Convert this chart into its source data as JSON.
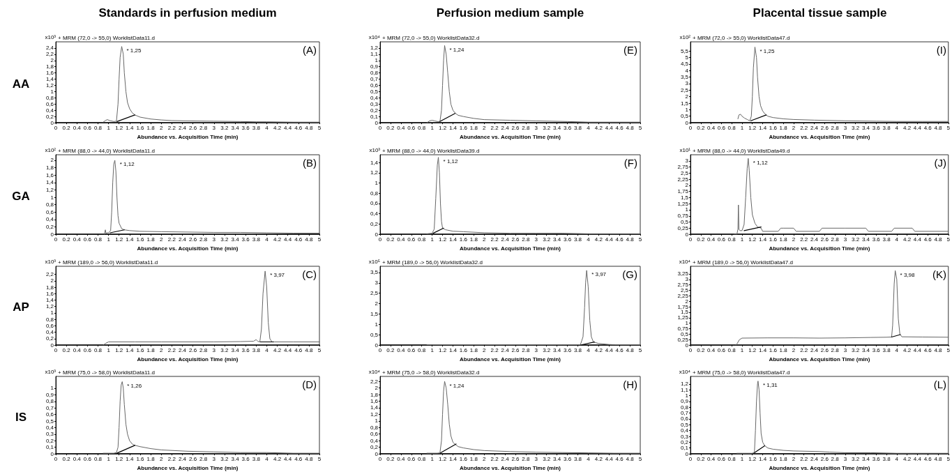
{
  "chart_data": [
    {
      "type": "line",
      "title": "+ MRM (72,0 -> 55,0) WorklistData11.d",
      "xlabel": "Abundance vs. Acquisition Time (min)",
      "ylabel": "x10³",
      "marker": "none",
      "xlim": [
        0,
        5
      ],
      "xticks": [
        0,
        0.2,
        0.4,
        0.6,
        0.8,
        1,
        1.2,
        1.4,
        1.6,
        1.8,
        2,
        2.2,
        2.4,
        2.6,
        2.8,
        3,
        3.2,
        3.4,
        3.6,
        3.8,
        4,
        4.2,
        4.4,
        4.6,
        4.8,
        5
      ],
      "ylim": [
        0,
        2.6
      ],
      "yticks": [
        0,
        {
          "value": 0.2,
          "label": "0,2"
        },
        {
          "value": 0.4,
          "label": "0,4"
        },
        {
          "value": 0.6,
          "label": "0,6"
        },
        {
          "value": 0.8,
          "label": "0,8"
        },
        1,
        {
          "value": 1.2,
          "label": "1,2"
        },
        {
          "value": 1.4,
          "label": "1,4"
        },
        {
          "value": 1.6,
          "label": "1,6"
        },
        {
          "value": 1.8,
          "label": "1,8"
        },
        2,
        {
          "value": 2.2,
          "label": "2,2"
        },
        {
          "value": 2.4,
          "label": "2,4"
        }
      ],
      "series": [
        {
          "color": "#666666",
          "x": [
            0.9,
            0.95,
            0.98,
            1.02,
            1.1,
            1.15,
            1.18,
            1.2,
            1.22,
            1.25,
            1.28,
            1.3,
            1.33,
            1.36,
            1.4,
            1.45,
            1.5,
            1.6,
            1.8,
            2,
            2.2,
            2.5,
            3,
            3.5,
            3.8,
            4,
            4.5,
            5
          ],
          "values": [
            0.02,
            0.08,
            0.1,
            0.07,
            0.04,
            0.05,
            0.6,
            1.4,
            2.1,
            2.45,
            2.2,
            1.6,
            1.0,
            0.65,
            0.45,
            0.32,
            0.25,
            0.18,
            0.12,
            0.09,
            0.07,
            0.06,
            0.05,
            0.04,
            0.03,
            0.03,
            0.02,
            0.02
          ]
        },
        {
          "color": "#000000",
          "x": [
            1.16,
            1.5
          ],
          "values": [
            0.04,
            0.25
          ]
        }
      ],
      "annotations": [
        "(A)",
        "Standards in perfusion medium",
        "AA",
        {
          "text": "* 1,25",
          "x": 1.25,
          "y": 2.45
        }
      ]
    },
    {
      "type": "line",
      "title": "+ MRM (72,0 -> 55,0) WorklistData32.d",
      "xlabel": "Abundance vs. Acquisition Time (min)",
      "ylabel": "x10⁴",
      "marker": "none",
      "xlim": [
        0,
        5
      ],
      "xticks": [
        0,
        0.2,
        0.4,
        0.6,
        0.8,
        1,
        1.2,
        1.4,
        1.6,
        1.8,
        2,
        2.2,
        2.4,
        2.6,
        2.8,
        3,
        3.2,
        3.4,
        3.6,
        3.8,
        4,
        4.2,
        4.4,
        4.6,
        4.8,
        5
      ],
      "ylim": [
        0,
        1.3
      ],
      "yticks": [
        0,
        {
          "value": 0.1,
          "label": "0,1"
        },
        {
          "value": 0.2,
          "label": "0,2"
        },
        {
          "value": 0.3,
          "label": "0,3"
        },
        {
          "value": 0.4,
          "label": "0,4"
        },
        {
          "value": 0.5,
          "label": "0,5"
        },
        {
          "value": 0.6,
          "label": "0,6"
        },
        {
          "value": 0.7,
          "label": "0,7"
        },
        {
          "value": 0.8,
          "label": "0,8"
        },
        {
          "value": 0.9,
          "label": "0,9"
        },
        1,
        {
          "value": 1.1,
          "label": "1,1"
        },
        {
          "value": 1.2,
          "label": "1,2"
        }
      ],
      "series": [
        {
          "color": "#666666",
          "x": [
            0.9,
            0.95,
            1,
            1.05,
            1.1,
            1.15,
            1.18,
            1.2,
            1.22,
            1.24,
            1.27,
            1.3,
            1.33,
            1.36,
            1.4,
            1.45,
            1.5,
            1.6,
            1.8,
            2,
            2.5,
            3,
            3.6,
            4,
            4.5,
            5
          ],
          "values": [
            0.0,
            0.03,
            0.04,
            0.03,
            0.02,
            0.02,
            0.2,
            0.6,
            1.0,
            1.24,
            1.1,
            0.8,
            0.5,
            0.3,
            0.2,
            0.15,
            0.12,
            0.1,
            0.07,
            0.05,
            0.04,
            0.03,
            0.02,
            0.01,
            0.01,
            0.01
          ]
        },
        {
          "color": "#000000",
          "x": [
            1.15,
            1.44
          ],
          "values": [
            0.02,
            0.15
          ]
        }
      ],
      "annotations": [
        "(E)",
        "Perfusion medium sample",
        {
          "text": "* 1,24",
          "x": 1.24,
          "y": 1.24
        }
      ]
    },
    {
      "type": "line",
      "title": "+ MRM (72,0 -> 55,0) WorklistData47.d",
      "xlabel": "Abundance vs. Acquisition Time (min)",
      "ylabel": "x10²",
      "marker": "none",
      "xlim": [
        0,
        5
      ],
      "xticks": [
        0,
        0.2,
        0.4,
        0.6,
        0.8,
        1,
        1.2,
        1.4,
        1.6,
        1.8,
        2,
        2.2,
        2.4,
        2.6,
        2.8,
        3,
        3.2,
        3.4,
        3.6,
        3.8,
        4,
        4.2,
        4.4,
        4.6,
        4.8,
        5
      ],
      "ylim": [
        0,
        6.2
      ],
      "yticks": [
        0,
        {
          "value": 0.5,
          "label": "0,5"
        },
        1,
        {
          "value": 1.5,
          "label": "1,5"
        },
        2,
        {
          "value": 2.5,
          "label": "2,5"
        },
        3,
        {
          "value": 3.5,
          "label": "3,5"
        },
        4,
        {
          "value": 4.5,
          "label": "4,5"
        },
        5,
        {
          "value": 5.5,
          "label": "5,5"
        }
      ],
      "series": [
        {
          "color": "#666666",
          "x": [
            0.92,
            0.94,
            0.97,
            1.0,
            1.05,
            1.1,
            1.15,
            1.18,
            1.2,
            1.22,
            1.25,
            1.28,
            1.3,
            1.33,
            1.36,
            1.4,
            1.45,
            1.5,
            1.6,
            1.8,
            2,
            2.4,
            3,
            3.6,
            4,
            4.5,
            5
          ],
          "values": [
            0.3,
            0.6,
            0.65,
            0.5,
            0.35,
            0.25,
            0.15,
            0.5,
            2.0,
            4.2,
            5.8,
            5.0,
            3.5,
            2.0,
            1.3,
            0.9,
            0.65,
            0.5,
            0.4,
            0.3,
            0.25,
            0.2,
            0.15,
            0.12,
            0.1,
            0.1,
            0.1
          ]
        },
        {
          "color": "#000000",
          "x": [
            1.17,
            1.47
          ],
          "values": [
            0.15,
            0.6
          ]
        }
      ],
      "annotations": [
        "(I)",
        "Placental tissue sample",
        {
          "text": "* 1,25",
          "x": 1.25,
          "y": 5.8
        }
      ]
    },
    {
      "type": "line",
      "title": "+ MRM (88,0 -> 44,0) WorklistData11.d",
      "xlabel": "Abundance vs. Acquisition Time (min)",
      "ylabel": "x10²",
      "marker": "none",
      "xlim": [
        0,
        5
      ],
      "xticks": [
        0,
        0.2,
        0.4,
        0.6,
        0.8,
        1,
        1.2,
        1.4,
        1.6,
        1.8,
        2,
        2.2,
        2.4,
        2.6,
        2.8,
        3,
        3.2,
        3.4,
        3.6,
        3.8,
        4,
        4.2,
        4.4,
        4.6,
        4.8,
        5
      ],
      "ylim": [
        0,
        2.15
      ],
      "yticks": [
        0,
        {
          "value": 0.2,
          "label": "0,2"
        },
        {
          "value": 0.4,
          "label": "0,4"
        },
        {
          "value": 0.6,
          "label": "0,6"
        },
        {
          "value": 0.8,
          "label": "0,8"
        },
        1,
        {
          "value": 1.2,
          "label": "1,2"
        },
        {
          "value": 1.4,
          "label": "1,4"
        },
        {
          "value": 1.6,
          "label": "1,6"
        },
        {
          "value": 1.8,
          "label": "1,8"
        },
        2
      ],
      "series": [
        {
          "color": "#666666",
          "x": [
            0.92,
            0.94,
            0.95,
            0.97,
            1.0,
            1.04,
            1.06,
            1.08,
            1.1,
            1.12,
            1.14,
            1.16,
            1.18,
            1.2,
            1.25,
            1.3,
            1.4,
            1.6,
            2,
            2.5,
            3,
            3.5,
            4,
            4.5,
            5
          ],
          "values": [
            0.0,
            0.12,
            0.03,
            0.04,
            0.04,
            0.1,
            0.6,
            1.4,
            1.9,
            2.0,
            1.7,
            1.0,
            0.5,
            0.3,
            0.15,
            0.12,
            0.1,
            0.08,
            0.07,
            0.06,
            0.05,
            0.05,
            0.04,
            0.03,
            0.03
          ]
        },
        {
          "color": "#000000",
          "x": [
            1.03,
            1.3
          ],
          "values": [
            0.04,
            0.12
          ]
        }
      ],
      "annotations": [
        "(B)",
        "GA",
        {
          "text": "* 1,12",
          "x": 1.12,
          "y": 2.0
        }
      ]
    },
    {
      "type": "line",
      "title": "+ MRM (88,0 -> 44,0) WorklistData39.d",
      "xlabel": "Abundance vs. Acquisition Time (min)",
      "ylabel": "x10³",
      "marker": "none",
      "xlim": [
        0,
        5
      ],
      "xticks": [
        0,
        0.2,
        0.4,
        0.6,
        0.8,
        1,
        1.2,
        1.4,
        1.6,
        1.8,
        2,
        2.2,
        2.4,
        2.6,
        2.8,
        3,
        3.2,
        3.4,
        3.6,
        3.8,
        4,
        4.2,
        4.4,
        4.6,
        4.8,
        5
      ],
      "ylim": [
        0,
        1.55
      ],
      "yticks": [
        0,
        {
          "value": 0.2,
          "label": "0,2"
        },
        {
          "value": 0.4,
          "label": "0,4"
        },
        {
          "value": 0.6,
          "label": "0,6"
        },
        {
          "value": 0.8,
          "label": "0,8"
        },
        1,
        {
          "value": 1.2,
          "label": "1,2"
        },
        {
          "value": 1.4,
          "label": "1,4"
        }
      ],
      "series": [
        {
          "color": "#666666",
          "x": [
            0.9,
            1,
            1.04,
            1.07,
            1.1,
            1.12,
            1.14,
            1.16,
            1.18,
            1.2,
            1.25,
            1.3,
            1.4,
            1.6,
            2,
            2.5,
            3,
            3.5,
            4,
            5
          ],
          "values": [
            0.01,
            0.02,
            0.1,
            0.7,
            1.35,
            1.5,
            1.2,
            0.6,
            0.25,
            0.12,
            0.09,
            0.08,
            0.06,
            0.05,
            0.03,
            0.02,
            0.02,
            0.02,
            0.01,
            0.01
          ]
        },
        {
          "color": "#000000",
          "x": [
            1.02,
            1.22
          ],
          "values": [
            0.02,
            0.12
          ]
        }
      ],
      "annotations": [
        "(F)",
        {
          "text": "* 1,12",
          "x": 1.12,
          "y": 1.5
        }
      ]
    },
    {
      "type": "line",
      "title": "+ MRM (88,0 -> 44,0) WorklistData49.d",
      "xlabel": "Abundance vs. Acquisition Time (min)",
      "ylabel": "x10¹",
      "marker": "none",
      "xlim": [
        0,
        5
      ],
      "xticks": [
        0,
        0.2,
        0.4,
        0.6,
        0.8,
        1,
        1.2,
        1.4,
        1.6,
        1.8,
        2,
        2.2,
        2.4,
        2.6,
        2.8,
        3,
        3.2,
        3.4,
        3.6,
        3.8,
        4,
        4.2,
        4.4,
        4.6,
        4.8,
        5
      ],
      "ylim": [
        0,
        3.25
      ],
      "yticks": [
        0,
        {
          "value": 0.25,
          "label": "0,25"
        },
        {
          "value": 0.5,
          "label": "0,5"
        },
        {
          "value": 0.75,
          "label": "0,75"
        },
        1,
        {
          "value": 1.25,
          "label": "1,25"
        },
        {
          "value": 1.5,
          "label": "1,5"
        },
        {
          "value": 1.75,
          "label": "1,75"
        },
        2,
        {
          "value": 2.25,
          "label": "2,25"
        },
        {
          "value": 2.5,
          "label": "2,5"
        },
        {
          "value": 2.75,
          "label": "2,75"
        },
        3
      ],
      "series": [
        {
          "color": "#666666",
          "x": [
            0.85,
            0.9,
            0.92,
            0.93,
            0.94,
            0.96,
            1.0,
            1.04,
            1.07,
            1.1,
            1.12,
            1.14,
            1.17,
            1.2,
            1.25,
            1.3,
            1.37,
            1.4,
            1.7,
            1.75,
            1.8,
            2.0,
            2.05,
            2.5,
            2.55,
            3.0,
            3.4,
            3.45,
            3.9,
            3.95,
            4.3,
            4.35,
            5
          ],
          "values": [
            0,
            0,
            0.2,
            1.2,
            0.2,
            0.15,
            0.15,
            0.4,
            1.5,
            2.7,
            3.1,
            2.6,
            1.5,
            0.8,
            0.45,
            0.3,
            0.25,
            0.12,
            0.12,
            0.25,
            0.25,
            0.25,
            0.12,
            0.12,
            0.25,
            0.25,
            0.25,
            0.12,
            0.12,
            0.25,
            0.25,
            0.12,
            0.12
          ]
        },
        {
          "color": "#000000",
          "x": [
            1.04,
            1.37
          ],
          "values": [
            0.15,
            0.3
          ]
        }
      ],
      "annotations": [
        "(J)",
        {
          "text": "* 1,12",
          "x": 1.12,
          "y": 3.1
        }
      ]
    },
    {
      "type": "line",
      "title": "+ MRM (189,0 -> 56,0) WorklistData11.d",
      "xlabel": "Abundance vs. Acquisition Time (min)",
      "ylabel": "x10³",
      "marker": "none",
      "xlim": [
        0,
        5
      ],
      "xticks": [
        0,
        0.2,
        0.4,
        0.6,
        0.8,
        1,
        1.2,
        1.4,
        1.6,
        1.8,
        2,
        2.2,
        2.4,
        2.6,
        2.8,
        3,
        3.2,
        3.4,
        3.6,
        3.8,
        4,
        4.2,
        4.4,
        4.6,
        4.8,
        5
      ],
      "ylim": [
        0,
        2.45
      ],
      "yticks": [
        0,
        {
          "value": 0.2,
          "label": "0,2"
        },
        {
          "value": 0.4,
          "label": "0,4"
        },
        {
          "value": 0.6,
          "label": "0,6"
        },
        {
          "value": 0.8,
          "label": "0,8"
        },
        1,
        {
          "value": 1.2,
          "label": "1,2"
        },
        {
          "value": 1.4,
          "label": "1,4"
        },
        {
          "value": 1.6,
          "label": "1,6"
        },
        {
          "value": 1.8,
          "label": "1,8"
        },
        2,
        {
          "value": 2.2,
          "label": "2,2"
        }
      ],
      "series": [
        {
          "color": "#666666",
          "x": [
            0.9,
            0.95,
            1,
            1.5,
            2,
            2.5,
            3,
            3.5,
            3.75,
            3.8,
            3.83,
            3.87,
            3.9,
            3.93,
            3.97,
            4.0,
            4.03,
            4.06,
            4.1,
            4.15,
            4.5,
            5
          ],
          "values": [
            0.0,
            0.06,
            0.1,
            0.1,
            0.1,
            0.1,
            0.1,
            0.11,
            0.12,
            0.17,
            0.12,
            0.1,
            0.5,
            1.6,
            2.3,
            1.8,
            0.7,
            0.2,
            0.1,
            0.1,
            0.1,
            0.1
          ]
        },
        {
          "color": "#000000",
          "x": [
            3.88,
            4.13
          ],
          "values": [
            0.1,
            0.1
          ]
        }
      ],
      "annotations": [
        "(C)",
        "AP",
        {
          "text": "* 3,97",
          "x": 3.97,
          "y": 2.3
        }
      ]
    },
    {
      "type": "line",
      "title": "+ MRM (189,0 -> 56,0) WorklistData32.d",
      "xlabel": "Abundance vs. Acquisition Time (min)",
      "ylabel": "x10⁵",
      "marker": "none",
      "xlim": [
        0,
        5
      ],
      "xticks": [
        0,
        0.2,
        0.4,
        0.6,
        0.8,
        1,
        1.2,
        1.4,
        1.6,
        1.8,
        2,
        2.2,
        2.4,
        2.6,
        2.8,
        3,
        3.2,
        3.4,
        3.6,
        3.8,
        4,
        4.2,
        4.4,
        4.6,
        4.8,
        5
      ],
      "ylim": [
        0,
        3.8
      ],
      "yticks": [
        0,
        {
          "value": 0.5,
          "label": "0,5"
        },
        1,
        {
          "value": 1.5,
          "label": "1,5"
        },
        2,
        {
          "value": 2.5,
          "label": "2,5"
        },
        3,
        {
          "value": 3.5,
          "label": "3,5"
        }
      ],
      "series": [
        {
          "color": "#666666",
          "x": [
            0.9,
            1,
            2,
            3,
            3.5,
            3.85,
            3.9,
            3.93,
            3.95,
            3.97,
            4.0,
            4.03,
            4.06,
            4.1,
            4.2,
            4.4,
            4.5,
            5
          ],
          "values": [
            0.02,
            0.02,
            0.02,
            0.02,
            0.02,
            0.02,
            0.4,
            1.8,
            3.0,
            3.6,
            2.8,
            1.2,
            0.4,
            0.15,
            0.08,
            0.03,
            0.02,
            0.02
          ]
        },
        {
          "color": "#000000",
          "x": [
            3.88,
            4.12
          ],
          "values": [
            0.02,
            0.15
          ]
        }
      ],
      "annotations": [
        "(G)",
        {
          "text": "* 3,97",
          "x": 3.97,
          "y": 3.6
        }
      ]
    },
    {
      "type": "line",
      "title": "+ MRM (189,0 -> 56,0) WorklistData47.d",
      "xlabel": "Abundance vs. Acquisition Time (min)",
      "ylabel": "x10⁴",
      "marker": "none",
      "xlim": [
        0,
        5
      ],
      "xticks": [
        0,
        0.2,
        0.4,
        0.6,
        0.8,
        1,
        1.2,
        1.4,
        1.6,
        1.8,
        2,
        2.2,
        2.4,
        2.6,
        2.8,
        3,
        3.2,
        3.4,
        3.6,
        3.8,
        4,
        4.2,
        4.4,
        4.6,
        4.8,
        5
      ],
      "ylim": [
        0,
        3.6
      ],
      "yticks": [
        0,
        {
          "value": 0.25,
          "label": "0,25"
        },
        {
          "value": 0.5,
          "label": "0,5"
        },
        {
          "value": 0.75,
          "label": "0,75"
        },
        1,
        {
          "value": 1.25,
          "label": "1,25"
        },
        {
          "value": 1.5,
          "label": "1,5"
        },
        {
          "value": 1.75,
          "label": "1,75"
        },
        2,
        {
          "value": 2.25,
          "label": "2,25"
        },
        {
          "value": 2.5,
          "label": "2,5"
        },
        {
          "value": 2.75,
          "label": "2,75"
        },
        3,
        {
          "value": 3.25,
          "label": "3,25"
        }
      ],
      "series": [
        {
          "color": "#666666",
          "x": [
            0.88,
            0.9,
            0.95,
            1.0,
            1.5,
            2,
            2.5,
            3,
            3.5,
            3.8,
            3.9,
            3.92,
            3.95,
            3.97,
            4.0,
            4.03,
            4.06,
            4.1,
            4.5,
            5
          ],
          "values": [
            0.0,
            0.05,
            0.25,
            0.32,
            0.33,
            0.33,
            0.32,
            0.33,
            0.35,
            0.36,
            0.37,
            0.9,
            2.8,
            3.4,
            3.0,
            1.2,
            0.5,
            0.38,
            0.37,
            0.36
          ]
        },
        {
          "color": "#000000",
          "x": [
            3.9,
            4.07
          ],
          "values": [
            0.37,
            0.48
          ]
        }
      ],
      "annotations": [
        "(K)",
        {
          "text": "* 3,98",
          "x": 3.97,
          "y": 3.4
        }
      ]
    },
    {
      "type": "line",
      "title": "+ MRM (75,0 -> 58,0) WorklistData11.d",
      "xlabel": "Abundance vs. Acquisition Time (min)",
      "ylabel": "x10³",
      "marker": "none",
      "xlim": [
        0,
        5
      ],
      "xticks": [
        0,
        0.2,
        0.4,
        0.6,
        0.8,
        1,
        1.2,
        1.4,
        1.6,
        1.8,
        2,
        2.2,
        2.4,
        2.6,
        2.8,
        3,
        3.2,
        3.4,
        3.6,
        3.8,
        4,
        4.2,
        4.4,
        4.6,
        4.8,
        5
      ],
      "ylim": [
        0,
        1.18
      ],
      "yticks": [
        0,
        {
          "value": 0.1,
          "label": "0,1"
        },
        {
          "value": 0.2,
          "label": "0,2"
        },
        {
          "value": 0.3,
          "label": "0,3"
        },
        {
          "value": 0.4,
          "label": "0,4"
        },
        {
          "value": 0.5,
          "label": "0,5"
        },
        {
          "value": 0.6,
          "label": "0,6"
        },
        {
          "value": 0.7,
          "label": "0,7"
        },
        {
          "value": 0.8,
          "label": "0,8"
        },
        {
          "value": 0.9,
          "label": "0,9"
        },
        1
      ],
      "series": [
        {
          "color": "#666666",
          "x": [
            0.9,
            1,
            1.1,
            1.15,
            1.18,
            1.2,
            1.22,
            1.24,
            1.26,
            1.28,
            1.3,
            1.33,
            1.36,
            1.4,
            1.45,
            1.5,
            1.6,
            1.8,
            2,
            2.5,
            3,
            3.5,
            4,
            4.5,
            5
          ],
          "values": [
            0.01,
            0.01,
            0.01,
            0.02,
            0.1,
            0.4,
            0.8,
            1.05,
            1.1,
            1.0,
            0.75,
            0.45,
            0.3,
            0.2,
            0.15,
            0.13,
            0.11,
            0.08,
            0.06,
            0.04,
            0.03,
            0.02,
            0.02,
            0.01,
            0.01
          ]
        },
        {
          "color": "#000000",
          "x": [
            1.16,
            1.5
          ],
          "values": [
            0.01,
            0.13
          ]
        }
      ],
      "annotations": [
        "(D)",
        "IS",
        {
          "text": "* 1,26",
          "x": 1.26,
          "y": 1.1
        }
      ]
    },
    {
      "type": "line",
      "title": "+ MRM (75,0 -> 58,0) WorklistData32.d",
      "xlabel": "Abundance vs. Acquisition Time (min)",
      "ylabel": "x10⁴",
      "marker": "none",
      "xlim": [
        0,
        5
      ],
      "xticks": [
        0,
        0.2,
        0.4,
        0.6,
        0.8,
        1,
        1.2,
        1.4,
        1.6,
        1.8,
        2,
        2.2,
        2.4,
        2.6,
        2.8,
        3,
        3.2,
        3.4,
        3.6,
        3.8,
        4,
        4.2,
        4.4,
        4.6,
        4.8,
        5
      ],
      "ylim": [
        0,
        2.35
      ],
      "yticks": [
        0,
        {
          "value": 0.2,
          "label": "0,2"
        },
        {
          "value": 0.4,
          "label": "0,4"
        },
        {
          "value": 0.6,
          "label": "0,6"
        },
        {
          "value": 0.8,
          "label": "0,8"
        },
        1,
        {
          "value": 1.2,
          "label": "1,2"
        },
        {
          "value": 1.4,
          "label": "1,4"
        },
        {
          "value": 1.6,
          "label": "1,6"
        },
        {
          "value": 1.8,
          "label": "1,8"
        },
        2,
        {
          "value": 2.2,
          "label": "2,2"
        }
      ],
      "series": [
        {
          "color": "#666666",
          "x": [
            0.9,
            1,
            1.1,
            1.15,
            1.18,
            1.2,
            1.22,
            1.24,
            1.27,
            1.3,
            1.33,
            1.36,
            1.4,
            1.45,
            1.5,
            1.6,
            1.8,
            2,
            2.5,
            3,
            3.5,
            4,
            4.5,
            5
          ],
          "values": [
            0.02,
            0.02,
            0.02,
            0.03,
            0.4,
            1.2,
            1.9,
            2.2,
            2.0,
            1.5,
            0.9,
            0.55,
            0.35,
            0.28,
            0.22,
            0.18,
            0.13,
            0.1,
            0.07,
            0.05,
            0.04,
            0.03,
            0.02,
            0.02
          ]
        },
        {
          "color": "#000000",
          "x": [
            1.16,
            1.46
          ],
          "values": [
            0.03,
            0.3
          ]
        }
      ],
      "annotations": [
        "(H)",
        {
          "text": "* 1,24",
          "x": 1.24,
          "y": 2.2
        }
      ]
    },
    {
      "type": "line",
      "title": "+ MRM (75,0 -> 58,0) WorklistData47.d",
      "xlabel": "Abundance vs. Acquisition Time (min)",
      "ylabel": "x10⁴",
      "marker": "none",
      "xlim": [
        0,
        5
      ],
      "xticks": [
        0,
        0.2,
        0.4,
        0.6,
        0.8,
        1,
        1.2,
        1.4,
        1.6,
        1.8,
        2,
        2.2,
        2.4,
        2.6,
        2.8,
        3,
        3.2,
        3.4,
        3.6,
        3.8,
        4,
        4.2,
        4.4,
        4.6,
        4.8,
        5
      ],
      "ylim": [
        0,
        1.33
      ],
      "yticks": [
        0,
        {
          "value": 0.1,
          "label": "0,1"
        },
        {
          "value": 0.2,
          "label": "0,2"
        },
        {
          "value": 0.3,
          "label": "0,3"
        },
        {
          "value": 0.4,
          "label": "0,4"
        },
        {
          "value": 0.5,
          "label": "0,5"
        },
        {
          "value": 0.6,
          "label": "0,6"
        },
        {
          "value": 0.7,
          "label": "0,7"
        },
        {
          "value": 0.8,
          "label": "0,8"
        },
        {
          "value": 0.9,
          "label": "0,9"
        },
        1,
        {
          "value": 1.1,
          "label": "1,1"
        },
        {
          "value": 1.2,
          "label": "1,2"
        }
      ],
      "series": [
        {
          "color": "#666666",
          "x": [
            0.9,
            1.0,
            1.1,
            1.2,
            1.24,
            1.26,
            1.28,
            1.3,
            1.31,
            1.33,
            1.35,
            1.37,
            1.4,
            1.44,
            1.5,
            1.6,
            1.8,
            2,
            2.5,
            2.7,
            3,
            3.5,
            4,
            4.5,
            5
          ],
          "values": [
            0.01,
            0.01,
            0.01,
            0.01,
            0.03,
            0.4,
            0.9,
            1.2,
            1.25,
            1.1,
            0.7,
            0.35,
            0.2,
            0.14,
            0.1,
            0.08,
            0.06,
            0.05,
            0.04,
            0.03,
            0.02,
            0.02,
            0.01,
            0.01,
            0.01
          ]
        },
        {
          "color": "#000000",
          "x": [
            1.24,
            1.44
          ],
          "values": [
            0.02,
            0.14
          ]
        }
      ],
      "annotations": [
        "(L)",
        {
          "text": "* 1,31",
          "x": 1.31,
          "y": 1.25
        }
      ]
    }
  ]
}
